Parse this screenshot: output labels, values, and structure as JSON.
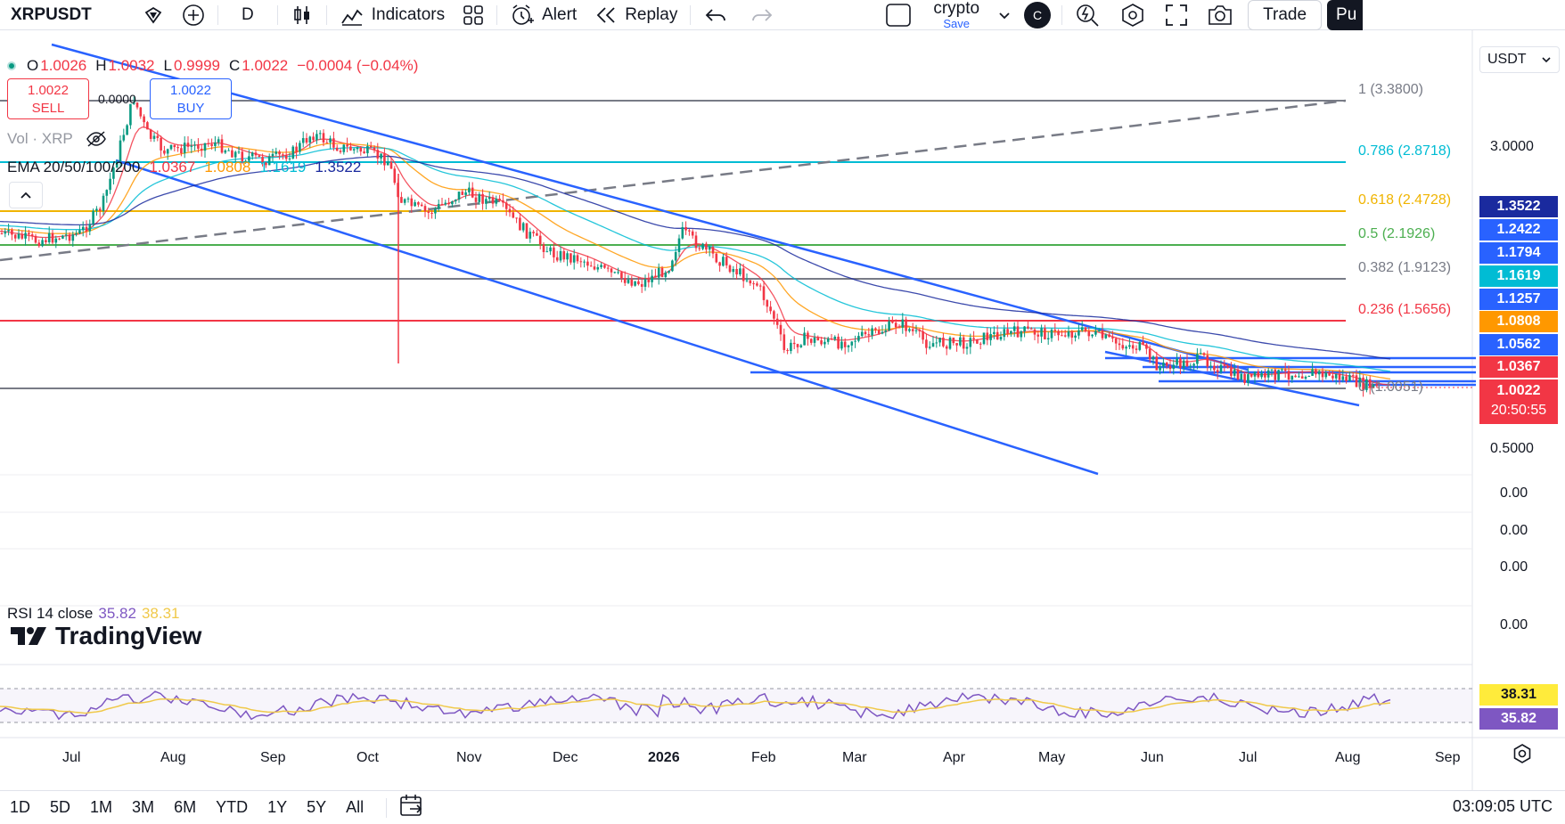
{
  "toolbar": {
    "symbol": "XRPUSDT",
    "interval": "D",
    "indicators_label": "Indicators",
    "alert_label": "Alert",
    "replay_label": "Replay",
    "layout_name": "crypto",
    "layout_save": "Save",
    "avatar_initial": "C",
    "trade_label": "Trade",
    "publish_label": "Pu"
  },
  "legend": {
    "open_key": "O",
    "open": "1.0026",
    "high_key": "H",
    "high": "1.0032",
    "low_key": "L",
    "low": "0.9999",
    "close_key": "C",
    "close": "1.0022",
    "change": "−0.0004 (−0.04%)",
    "sell_price": "1.0022",
    "sell_label": "SELL",
    "buy_price": "1.0022",
    "buy_label": "BUY",
    "spread": "0.0000",
    "vol_label": "Vol · XRP",
    "ema_label": "EMA 20/50/100/200",
    "ema20": "1.0367",
    "ema50": "1.0808",
    "ema100": "1.1619",
    "ema200": "1.3522",
    "rsi_label": "RSI 14 close",
    "rsi_value": "35.82",
    "rsi_ma": "38.31",
    "brand": "TradingView"
  },
  "price_scale": {
    "currency": "USDT",
    "ticks": [
      "3.0000",
      "0.5000",
      "0.00",
      "0.00",
      "0.00",
      "0.00"
    ],
    "labels": [
      {
        "value": "1.3522",
        "color": "#1a2a9e"
      },
      {
        "value": "1.2422",
        "color": "#2962ff"
      },
      {
        "value": "1.1794",
        "color": "#2962ff"
      },
      {
        "value": "1.1619",
        "color": "#00bcd4"
      },
      {
        "value": "1.1257",
        "color": "#2962ff"
      },
      {
        "value": "1.0808",
        "color": "#ff9800"
      },
      {
        "value": "1.0562",
        "color": "#2962ff"
      },
      {
        "value": "1.0367",
        "color": "#f23645"
      },
      {
        "value": "1.0022",
        "color": "#f23645"
      }
    ],
    "countdown": "20:50:55",
    "rsi_labels": [
      {
        "value": "38.31",
        "color": "#ffeb3b"
      },
      {
        "value": "35.82",
        "color": "#7e57c2"
      }
    ]
  },
  "fib_levels": [
    {
      "label": "1 (3.3800)",
      "color": "#787b86"
    },
    {
      "label": "0.786 (2.8718)",
      "color": "#00bcd4"
    },
    {
      "label": "0.618 (2.4728)",
      "color": "#f0b400"
    },
    {
      "label": "0.5 (2.1926)",
      "color": "#4caf50"
    },
    {
      "label": "0.382 (1.9123)",
      "color": "#787b86"
    },
    {
      "label": "0.236 (1.5656)",
      "color": "#f23645"
    },
    {
      "label": "0 (1.0051)",
      "color": "#787b86"
    }
  ],
  "time_axis": [
    "Jul",
    "Aug",
    "Sep",
    "Oct",
    "Nov",
    "Dec",
    "2026",
    "Feb",
    "Mar",
    "Apr",
    "May",
    "Jun",
    "Jul",
    "Aug",
    "Sep"
  ],
  "ranges": [
    "1D",
    "5D",
    "1M",
    "3M",
    "6M",
    "YTD",
    "1Y",
    "5Y",
    "All"
  ],
  "clock": "03:09:05 UTC"
}
